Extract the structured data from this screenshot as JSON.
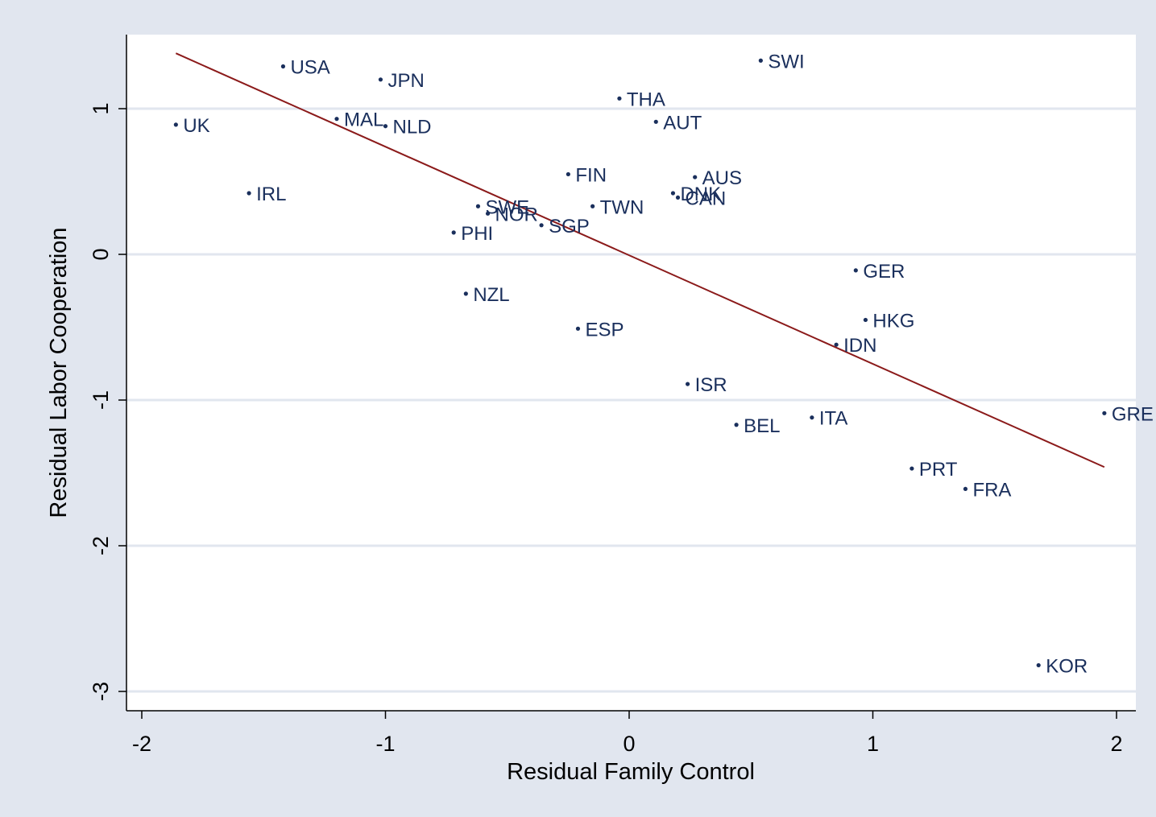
{
  "chart_data": {
    "type": "scatter",
    "xlabel": "Residual Family Control",
    "ylabel": "Residual Labor Cooperation",
    "xlim": [
      -2.08,
      2.08
    ],
    "ylim": [
      -3.15,
      1.52
    ],
    "xticks": [
      -2,
      -1,
      0,
      1,
      2
    ],
    "yticks": [
      -3,
      -2,
      -1,
      0,
      1
    ],
    "grid": "horizontal",
    "points": [
      {
        "label": "UK",
        "x": -1.86,
        "y": 0.89
      },
      {
        "label": "USA",
        "x": -1.42,
        "y": 1.29
      },
      {
        "label": "JPN",
        "x": -1.02,
        "y": 1.2
      },
      {
        "label": "MAL",
        "x": -1.2,
        "y": 0.93
      },
      {
        "label": "NLD",
        "x": -1.0,
        "y": 0.88
      },
      {
        "label": "IRL",
        "x": -1.56,
        "y": 0.42
      },
      {
        "label": "SWE",
        "x": -0.62,
        "y": 0.33
      },
      {
        "label": "NOR",
        "x": -0.58,
        "y": 0.28
      },
      {
        "label": "PHI",
        "x": -0.72,
        "y": 0.15
      },
      {
        "label": "SGP",
        "x": -0.36,
        "y": 0.2
      },
      {
        "label": "FIN",
        "x": -0.25,
        "y": 0.55
      },
      {
        "label": "TWN",
        "x": -0.15,
        "y": 0.33
      },
      {
        "label": "THA",
        "x": -0.04,
        "y": 1.07
      },
      {
        "label": "AUT",
        "x": 0.11,
        "y": 0.91
      },
      {
        "label": "DNK",
        "x": 0.18,
        "y": 0.42
      },
      {
        "label": "CAN",
        "x": 0.2,
        "y": 0.39
      },
      {
        "label": "AUS",
        "x": 0.27,
        "y": 0.53
      },
      {
        "label": "SWI",
        "x": 0.54,
        "y": 1.33
      },
      {
        "label": "NZL",
        "x": -0.67,
        "y": -0.27
      },
      {
        "label": "ESP",
        "x": -0.21,
        "y": -0.51
      },
      {
        "label": "ISR",
        "x": 0.24,
        "y": -0.89
      },
      {
        "label": "BEL",
        "x": 0.44,
        "y": -1.17
      },
      {
        "label": "ITA",
        "x": 0.75,
        "y": -1.12
      },
      {
        "label": "GER",
        "x": 0.93,
        "y": -0.11
      },
      {
        "label": "HKG",
        "x": 0.97,
        "y": -0.45
      },
      {
        "label": "IDN",
        "x": 0.85,
        "y": -0.62
      },
      {
        "label": "PRT",
        "x": 1.16,
        "y": -1.47
      },
      {
        "label": "FRA",
        "x": 1.38,
        "y": -1.61
      },
      {
        "label": "GRE",
        "x": 1.95,
        "y": -1.09
      },
      {
        "label": "KOR",
        "x": 1.68,
        "y": -2.82
      }
    ],
    "fit_line": {
      "x": [
        -1.86,
        1.95
      ],
      "y": [
        1.38,
        -1.46
      ]
    },
    "colors": {
      "outer_bg": "#e1e6ef",
      "plot_bg": "#ffffff",
      "grid": "#e1e6ef",
      "marker": "#1a2f5c",
      "label": "#1a2f5c",
      "fit_line": "#8b1a1a",
      "axis": "#000000"
    }
  }
}
